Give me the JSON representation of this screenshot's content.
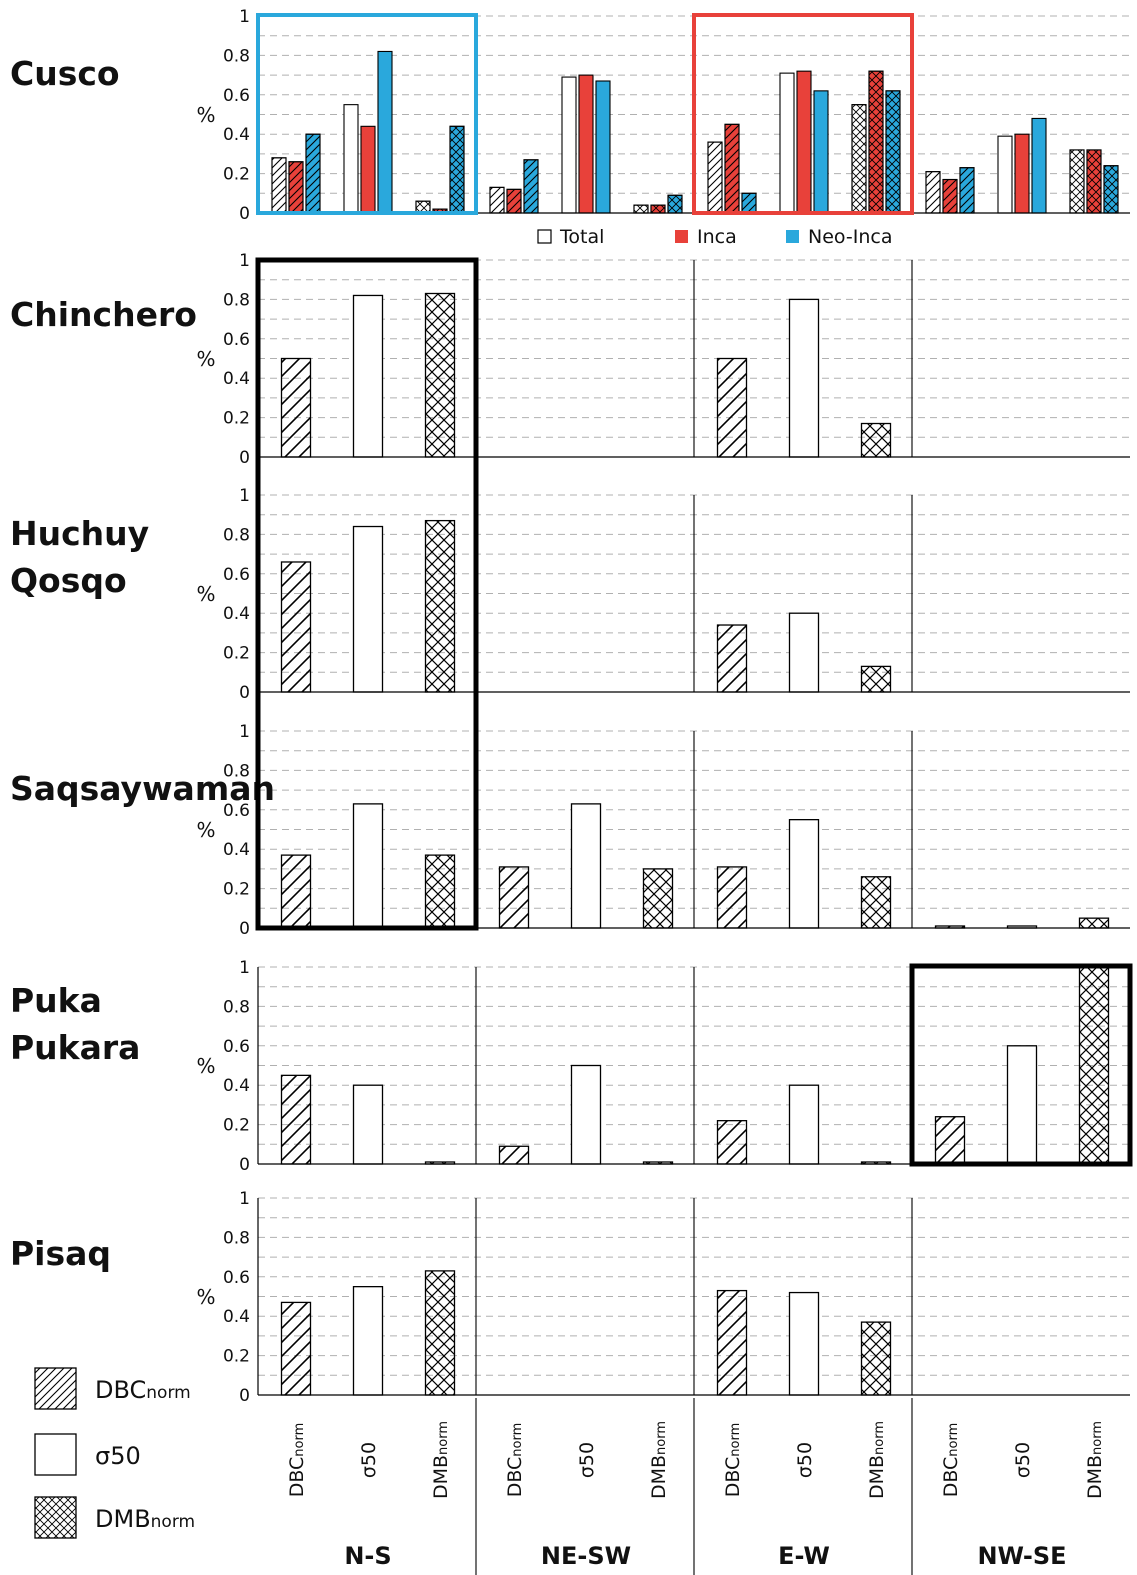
{
  "chart_data": {
    "type": "bar",
    "ylabel": "%",
    "ylim": [
      0,
      1
    ],
    "yticks": [
      "0",
      "0.2",
      "0.4",
      "0.6",
      "0.8",
      "1"
    ],
    "groups": [
      {
        "name": "N-S",
        "metrics": [
          {
            "base": "DBC",
            "sub": "norm",
            "pattern": "hatch"
          },
          {
            "base": "σ50",
            "sub": "",
            "pattern": "plain"
          },
          {
            "base": "DMB",
            "sub": "norm",
            "pattern": "cross"
          }
        ]
      },
      {
        "name": "NE-SW",
        "metrics": [
          {
            "base": "DBC",
            "sub": "norm",
            "pattern": "hatch"
          },
          {
            "base": "σ50",
            "sub": "",
            "pattern": "plain"
          },
          {
            "base": "DMB",
            "sub": "norm",
            "pattern": "cross"
          }
        ]
      },
      {
        "name": "E-W",
        "metrics": [
          {
            "base": "DBC",
            "sub": "norm",
            "pattern": "hatch"
          },
          {
            "base": "σ50",
            "sub": "",
            "pattern": "plain"
          },
          {
            "base": "DMB",
            "sub": "norm",
            "pattern": "cross"
          }
        ]
      },
      {
        "name": "NW-SE",
        "metrics": [
          {
            "base": "DBC",
            "sub": "norm",
            "pattern": "hatch"
          },
          {
            "base": "σ50",
            "sub": "",
            "pattern": "plain"
          },
          {
            "base": "DMB",
            "sub": "norm",
            "pattern": "cross"
          }
        ]
      }
    ],
    "series_legend": [
      {
        "name": "Total",
        "color": "#ffffff",
        "symbol": "☐"
      },
      {
        "name": "Inca",
        "color": "#e8413a",
        "symbol": "■"
      },
      {
        "name": "Neo-Inca",
        "color": "#2aa8dc",
        "symbol": "■"
      }
    ],
    "pattern_legend": [
      {
        "base": "DBC",
        "sub": "norm",
        "pattern": "hatch"
      },
      {
        "base": "σ50",
        "sub": "",
        "pattern": "plain"
      },
      {
        "base": "DMB",
        "sub": "norm",
        "pattern": "cross"
      }
    ],
    "sites": [
      {
        "name_lines": [
          "Cusco"
        ],
        "series": [
          "Total",
          "Inca",
          "Neo-Inca"
        ],
        "values": [
          [
            [
              0.28,
              0.26,
              0.4
            ],
            [
              0.55,
              0.44,
              0.82
            ],
            [
              0.06,
              0.02,
              0.44
            ]
          ],
          [
            [
              0.13,
              0.12,
              0.27
            ],
            [
              0.69,
              0.7,
              0.67
            ],
            [
              0.04,
              0.04,
              0.09
            ]
          ],
          [
            [
              0.36,
              0.45,
              0.1
            ],
            [
              0.71,
              0.72,
              0.62
            ],
            [
              0.55,
              0.72,
              0.62
            ]
          ],
          [
            [
              0.21,
              0.17,
              0.23
            ],
            [
              0.39,
              0.4,
              0.48
            ],
            [
              0.32,
              0.32,
              0.24
            ]
          ]
        ],
        "highlights": [
          {
            "group": 0,
            "color": "#2aa8dc"
          },
          {
            "group": 2,
            "color": "#e8413a"
          }
        ]
      },
      {
        "name_lines": [
          "Chinchero"
        ],
        "series": [
          "Total"
        ],
        "values": [
          [
            [
              0.5
            ],
            [
              0.82
            ],
            [
              0.83
            ]
          ],
          null,
          [
            [
              0.5
            ],
            [
              0.8
            ],
            [
              0.17
            ]
          ],
          null
        ],
        "highlights": []
      },
      {
        "name_lines": [
          "Huchuy",
          "Qosqo"
        ],
        "series": [
          "Total"
        ],
        "values": [
          [
            [
              0.66
            ],
            [
              0.84
            ],
            [
              0.87
            ]
          ],
          null,
          [
            [
              0.34
            ],
            [
              0.4
            ],
            [
              0.13
            ]
          ],
          null
        ],
        "highlights": []
      },
      {
        "name_lines": [
          "Saqsaywaman"
        ],
        "series": [
          "Total"
        ],
        "values": [
          [
            [
              0.37
            ],
            [
              0.63
            ],
            [
              0.37
            ]
          ],
          [
            [
              0.31
            ],
            [
              0.63
            ],
            [
              0.3
            ]
          ],
          [
            [
              0.31
            ],
            [
              0.55
            ],
            [
              0.26
            ]
          ],
          [
            [
              0.01
            ],
            [
              0.01
            ],
            [
              0.05
            ]
          ]
        ],
        "highlights": []
      },
      {
        "name_lines": [
          "Puka",
          "Pukara"
        ],
        "series": [
          "Total"
        ],
        "values": [
          [
            [
              0.45
            ],
            [
              0.4
            ],
            [
              0.01
            ]
          ],
          [
            [
              0.09
            ],
            [
              0.5
            ],
            [
              0.01
            ]
          ],
          [
            [
              0.22
            ],
            [
              0.4
            ],
            [
              0.01
            ]
          ],
          [
            [
              0.24
            ],
            [
              0.6
            ],
            [
              1.0
            ]
          ]
        ],
        "highlights": [
          {
            "group": 3,
            "color": "#000000"
          }
        ]
      },
      {
        "name_lines": [
          "Pisaq"
        ],
        "series": [
          "Total"
        ],
        "values": [
          [
            [
              0.47
            ],
            [
              0.55
            ],
            [
              0.63
            ]
          ],
          null,
          [
            [
              0.53
            ],
            [
              0.52
            ],
            [
              0.37
            ]
          ],
          null
        ],
        "highlights": []
      }
    ],
    "big_highlight": {
      "group": 0,
      "from_site": 1,
      "to_site": 3,
      "color": "#000000"
    },
    "colors": {
      "Total": "#ffffff",
      "Inca": "#e8413a",
      "Neo-Inca": "#2aa8dc",
      "stroke": "#000000",
      "grid": "#b0b0b0"
    }
  }
}
